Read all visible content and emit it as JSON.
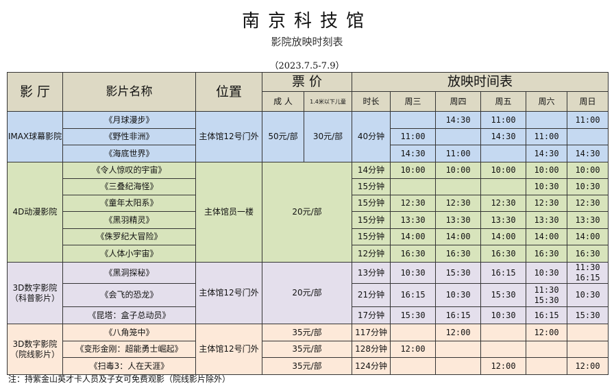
{
  "title": "南京科技馆",
  "subtitle": "影院放映时刻表",
  "date_range": "（2023.7.5-7.9）",
  "headers": {
    "hall": "影 厅",
    "film": "影片名称",
    "location": "位置",
    "price": "票 价",
    "adult": "成 人",
    "child": "1.4米以下儿童",
    "schedule": "放映时间表",
    "duration": "时长",
    "days": [
      "周三",
      "周四",
      "周五",
      "周六",
      "周日"
    ]
  },
  "halls": [
    {
      "name": "IMAX球幕影院",
      "location": "主体馆12号门外",
      "cls": "imax",
      "adult": "50元/部",
      "child": "30元/部",
      "duration": "40分钟",
      "films": [
        {
          "name": "《月球漫步》",
          "times": [
            "",
            "14:30",
            "11:00",
            "",
            "11:00"
          ]
        },
        {
          "name": "《野性非洲》",
          "times": [
            "11:00",
            "",
            "14:30",
            "11:00",
            ""
          ]
        },
        {
          "name": "《海底世界》",
          "times": [
            "14:30",
            "11:00",
            "",
            "14:30",
            "14:30"
          ]
        }
      ]
    },
    {
      "name": "4D动漫影院",
      "location": "主体馆员一楼",
      "cls": "d4",
      "price": "20元/部",
      "films": [
        {
          "name": "《令人惊叹的宇宙》",
          "duration": "14分钟",
          "times": [
            "10:00",
            "10:00",
            "10:00",
            "10:00",
            "10:00"
          ]
        },
        {
          "name": "《三叠纪海怪》",
          "duration": "15分钟",
          "times": [
            "",
            "",
            "",
            "10:30",
            "10:30"
          ]
        },
        {
          "name": "《童年太阳系》",
          "duration": "15分钟",
          "times": [
            "12:30",
            "12:30",
            "12:30",
            "12:30",
            "12:30"
          ]
        },
        {
          "name": "《黑羽精灵》",
          "duration": "15分钟",
          "times": [
            "13:30",
            "13:30",
            "13:30",
            "13:30",
            "13:30"
          ]
        },
        {
          "name": "《侏罗纪大冒险》",
          "duration": "15分钟",
          "times": [
            "14:00",
            "14:00",
            "14:00",
            "14:00",
            "14:00"
          ]
        },
        {
          "name": "《人体小宇宙》",
          "duration": "12分钟",
          "times": [
            "16:30",
            "16:30",
            "16:30",
            "16:30",
            "16:30"
          ]
        }
      ]
    },
    {
      "name": "3D数字影院\n（科普影片）",
      "location": "主体馆12号门外",
      "cls": "sci",
      "price": "20元/部",
      "films": [
        {
          "name": "《黑洞探秘》",
          "duration": "13分钟",
          "times": [
            "10:30",
            "15:30",
            "16:15",
            "10:30",
            "11:30\n16:15"
          ]
        },
        {
          "name": "《会飞的恐龙》",
          "duration": "21分钟",
          "times": [
            "16:15",
            "10:30",
            "15:30",
            "11:30\n15:30",
            "10:30"
          ]
        },
        {
          "name": "《昆塔：盒子总动员》",
          "duration": "17分钟",
          "times": [
            "15:30",
            "16:15",
            "10:30",
            "16:15",
            "15:30"
          ]
        }
      ]
    },
    {
      "name": "3D数字影院\n（院线影片）",
      "location": "主体馆12号门外",
      "cls": "cin",
      "films": [
        {
          "name": "《八角笼中》",
          "price": "35元/部",
          "duration": "117分钟",
          "times": [
            "",
            "12:00",
            "",
            "12:00",
            ""
          ]
        },
        {
          "name": "《变形金刚：超能勇士崛起》",
          "price": "35元/部",
          "duration": "128分钟",
          "times": [
            "12:00",
            "",
            "",
            "",
            ""
          ]
        },
        {
          "name": "《扫毒3：人在天涯》",
          "price": "35元/部",
          "duration": "124分钟",
          "times": [
            "",
            "",
            "12:00",
            "",
            "12:00"
          ]
        }
      ]
    }
  ],
  "note": "注：持紫金山英才卡人员及子女可免费观影（院线影片除外）",
  "colors": {
    "header": "#ddd9c4",
    "imax": "#c5d9f1",
    "4d": "#d8e4bc",
    "sci": "#e4dfec",
    "cinema": "#fde9d9"
  }
}
